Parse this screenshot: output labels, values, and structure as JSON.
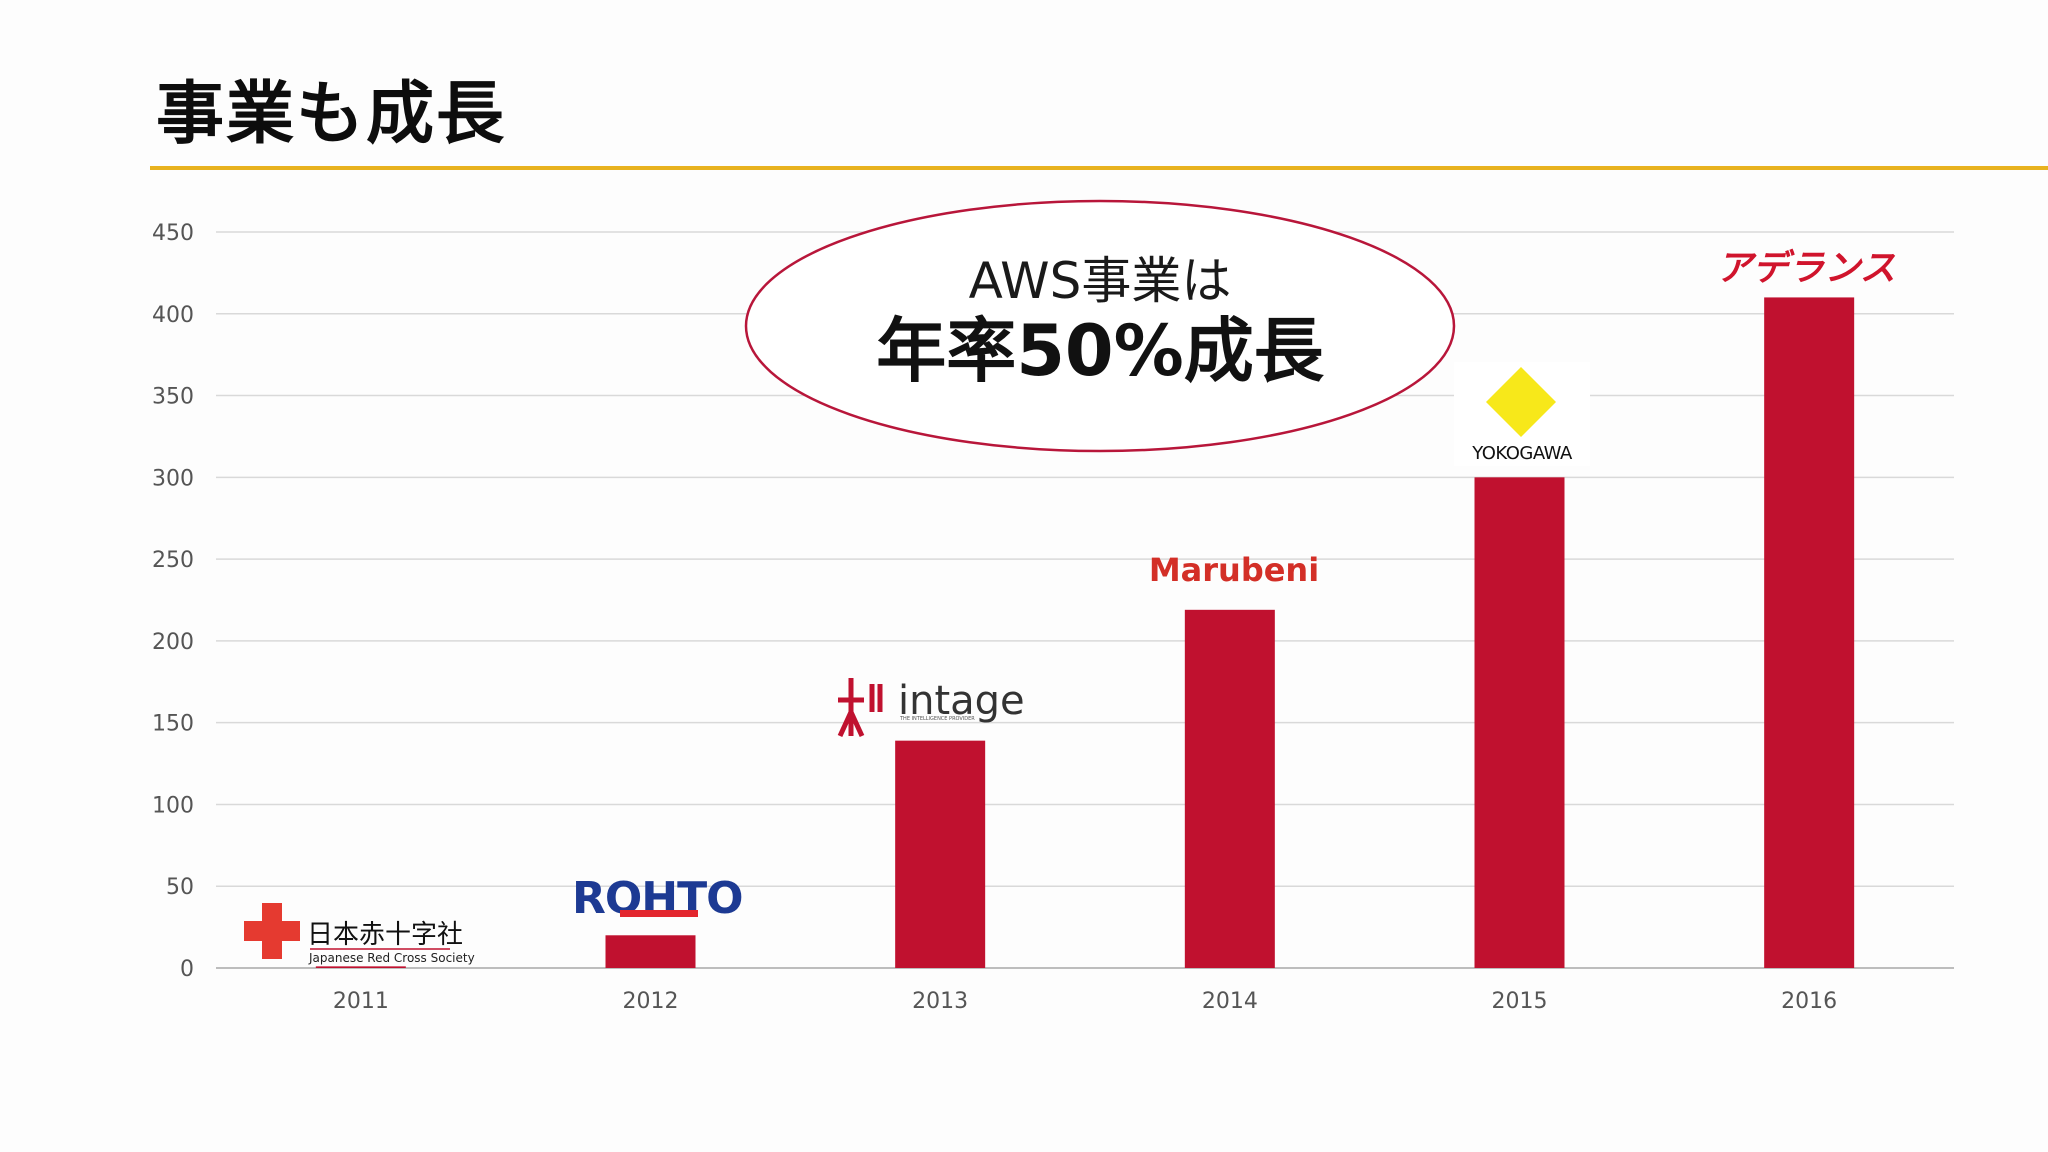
{
  "title": "事業も成長",
  "callout": {
    "line1": "AWS事業は",
    "line2": "年率50%成長"
  },
  "logos": [
    {
      "name": "redcross",
      "text": "日本赤十字社",
      "subtext": "Japanese Red Cross Society"
    },
    {
      "name": "rohto",
      "text": "ROHTO"
    },
    {
      "name": "intage",
      "text": "intage",
      "subtext": "THE INTELLIGENCE PROVIDER"
    },
    {
      "name": "marubeni",
      "text": "Marubeni"
    },
    {
      "name": "yokogawa",
      "text": "YOKOGAWA"
    },
    {
      "name": "aderans",
      "text": "アデランス"
    }
  ],
  "colors": {
    "bar": "#c0112f",
    "accent_rule": "#e8b21f",
    "callout_border": "#b8163a"
  },
  "chart_data": {
    "type": "bar",
    "categories": [
      "2011",
      "2012",
      "2013",
      "2014",
      "2015",
      "2016"
    ],
    "values": [
      1,
      20,
      139,
      219,
      300,
      410
    ],
    "yticks": [
      0,
      50,
      100,
      150,
      200,
      250,
      300,
      350,
      400,
      450
    ],
    "ylim": [
      0,
      450
    ],
    "grid": true,
    "legend": "none"
  }
}
